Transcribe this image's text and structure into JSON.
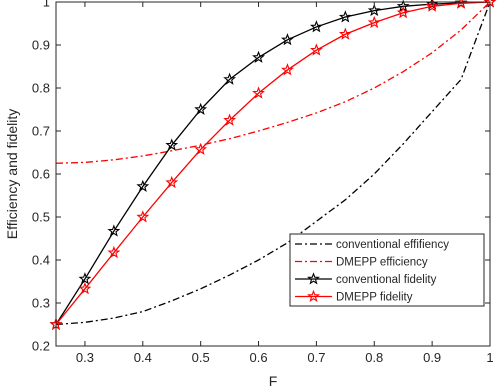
{
  "chart_data": {
    "type": "line",
    "xlabel": "F",
    "ylabel": "Efficiency and fidelity",
    "xlim": [
      0.25,
      1
    ],
    "ylim": [
      0.2,
      1
    ],
    "xticks": [
      0.3,
      0.4,
      0.5,
      0.6,
      0.7,
      0.8,
      0.9,
      1
    ],
    "xtick_labels": [
      "0.3",
      "0.4",
      "0.5",
      "0.6",
      "0.7",
      "0.8",
      "0.9",
      "1"
    ],
    "yticks": [
      0.2,
      0.3,
      0.4,
      0.5,
      0.6,
      0.7,
      0.8,
      0.9,
      1
    ],
    "ytick_labels": [
      "0.2",
      "0.3",
      "0.4",
      "0.5",
      "0.6",
      "0.7",
      "0.8",
      "0.9",
      "1"
    ],
    "grid": false,
    "legend_position": "bottom-right",
    "series": [
      {
        "name": "conventional effifiency",
        "color": "#000000",
        "line_style": "dash-dot",
        "marker": "none",
        "x": [
          0.25,
          0.3,
          0.35,
          0.4,
          0.45,
          0.5,
          0.55,
          0.6,
          0.65,
          0.7,
          0.75,
          0.8,
          0.85,
          0.9,
          0.95,
          1.0
        ],
        "y": [
          0.25,
          0.255,
          0.265,
          0.28,
          0.305,
          0.333,
          0.365,
          0.4,
          0.44,
          0.49,
          0.54,
          0.6,
          0.67,
          0.745,
          0.82,
          1.0
        ]
      },
      {
        "name": "DMEPP efficiency",
        "color": "#ff0000",
        "line_style": "dash-dot",
        "marker": "none",
        "x": [
          0.25,
          0.3,
          0.35,
          0.4,
          0.45,
          0.5,
          0.55,
          0.6,
          0.65,
          0.7,
          0.75,
          0.8,
          0.85,
          0.9,
          0.95,
          1.0
        ],
        "y": [
          0.625,
          0.627,
          0.633,
          0.642,
          0.654,
          0.667,
          0.682,
          0.7,
          0.72,
          0.742,
          0.768,
          0.8,
          0.838,
          0.882,
          0.935,
          1.0
        ]
      },
      {
        "name": "conventional fidelity",
        "color": "#000000",
        "line_style": "solid",
        "marker": "star",
        "x": [
          0.25,
          0.3,
          0.35,
          0.4,
          0.45,
          0.5,
          0.55,
          0.6,
          0.65,
          0.7,
          0.75,
          0.8,
          0.85,
          0.9,
          0.95,
          1.0
        ],
        "y": [
          0.25,
          0.356,
          0.467,
          0.571,
          0.667,
          0.75,
          0.82,
          0.871,
          0.912,
          0.942,
          0.965,
          0.98,
          0.99,
          0.995,
          0.998,
          1.0
        ]
      },
      {
        "name": "DMEPP fidelity",
        "color": "#ff0000",
        "line_style": "solid",
        "marker": "star",
        "x": [
          0.25,
          0.3,
          0.35,
          0.4,
          0.45,
          0.5,
          0.55,
          0.6,
          0.65,
          0.7,
          0.75,
          0.8,
          0.85,
          0.9,
          0.95,
          1.0
        ],
        "y": [
          0.25,
          0.333,
          0.417,
          0.5,
          0.58,
          0.657,
          0.725,
          0.788,
          0.842,
          0.888,
          0.925,
          0.952,
          0.975,
          0.99,
          0.997,
          1.0
        ]
      }
    ]
  }
}
